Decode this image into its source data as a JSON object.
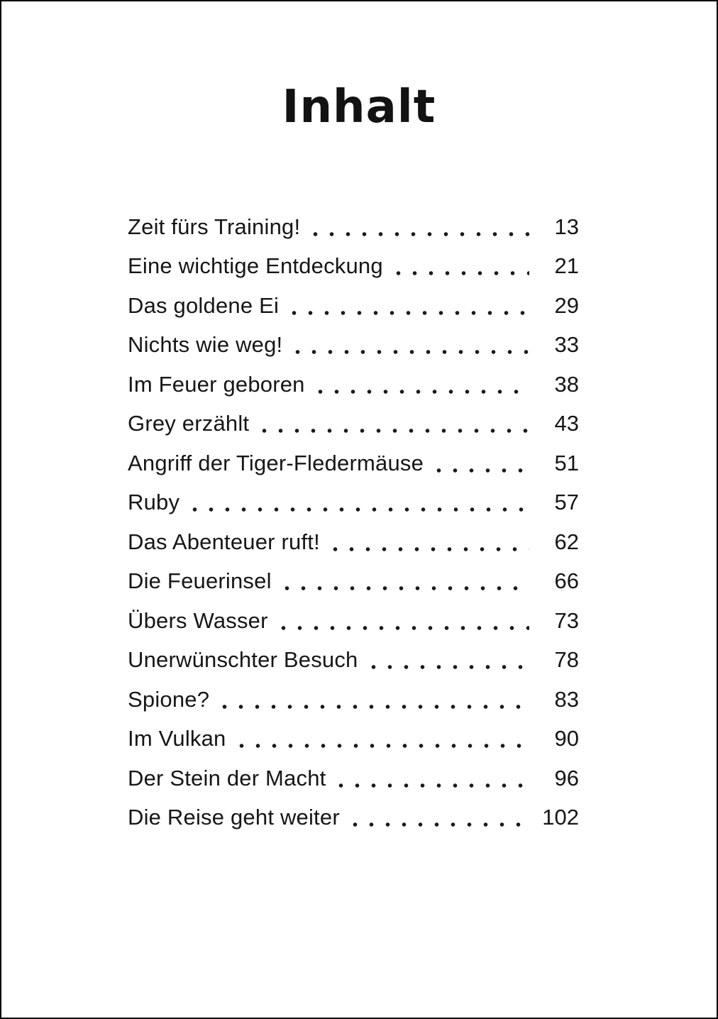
{
  "page": {
    "title": "Inhalt"
  },
  "toc": {
    "entries": [
      {
        "label": "Zeit fürs Training!",
        "page": "13"
      },
      {
        "label": "Eine wichtige Entdeckung",
        "page": "21"
      },
      {
        "label": "Das goldene Ei",
        "page": "29"
      },
      {
        "label": "Nichts wie weg!",
        "page": "33"
      },
      {
        "label": "Im Feuer geboren",
        "page": "38"
      },
      {
        "label": "Grey erzählt",
        "page": "43"
      },
      {
        "label": "Angriff der Tiger-Fledermäuse",
        "page": "51"
      },
      {
        "label": "Ruby",
        "page": "57"
      },
      {
        "label": "Das Abenteuer ruft!",
        "page": "62"
      },
      {
        "label": "Die Feuerinsel",
        "page": "66"
      },
      {
        "label": "Übers Wasser",
        "page": "73"
      },
      {
        "label": "Unerwünschter Besuch",
        "page": "78"
      },
      {
        "label": "Spione?",
        "page": "83"
      },
      {
        "label": "Im Vulkan",
        "page": "90"
      },
      {
        "label": "Der Stein der Macht",
        "page": "96"
      },
      {
        "label": "Die Reise geht weiter",
        "page": "102"
      }
    ]
  }
}
